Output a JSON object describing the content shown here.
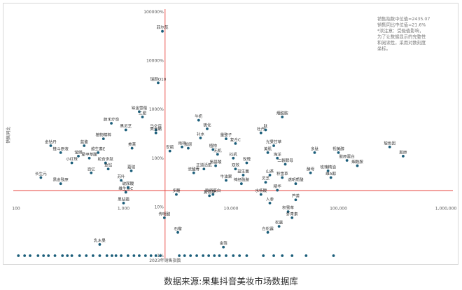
{
  "chart_data": {
    "type": "scatter",
    "xlabel": "2023年销售指数",
    "ylabel": "销售同比",
    "x_scale": "log",
    "y_scale": "log",
    "xlim": [
      100,
      1000000
    ],
    "ylim": [
      "1%",
      "100000%"
    ],
    "x_ticks": [
      "100",
      "1,000",
      "10,000",
      "100,000",
      "1,000,000"
    ],
    "y_ticks": [
      "100000%",
      "10000%",
      "1000%",
      "100%",
      "10%",
      "1%"
    ],
    "median_x": 2435.07,
    "median_y": "21.6%",
    "annotation": [
      "销售指数中位值=2435.07",
      "销售同比中位值=21.6%",
      "*滨注意：受极值影响，",
      "为了让数据显示的完整性",
      "和阅读性，采用对数刻度",
      "坐标。"
    ],
    "color": "#1b5e7a",
    "median_line_color": "#e8403a",
    "points": [
      {
        "label": "菲尔蕊",
        "x": 2300,
        "y": 40000
      },
      {
        "label": "瑞颜Q10",
        "x": 2100,
        "y": 3500
      },
      {
        "label": "铂金雪蕴",
        "x": 1400,
        "y": 900
      },
      {
        "label": "三肥",
        "x": 1500,
        "y": 700
      },
      {
        "label": "颜禾疗愈",
        "x": 770,
        "y": 520
      },
      {
        "label": "黑灵芝",
        "x": 1050,
        "y": 380
      },
      {
        "label": "马仑百",
        "x": 2000,
        "y": 380
      },
      {
        "label": "美元霸",
        "x": 2000,
        "y": 330
      },
      {
        "label": "植物精粹",
        "x": 650,
        "y": 250
      },
      {
        "label": "金钴丹",
        "x": 210,
        "y": 180
      },
      {
        "label": "蓝鉴",
        "x": 430,
        "y": 180
      },
      {
        "label": "美莱",
        "x": 1200,
        "y": 160
      },
      {
        "label": "维生素E",
        "x": 580,
        "y": 130
      },
      {
        "label": "莹朗",
        "x": 380,
        "y": 110
      },
      {
        "label": "蜂斗原液",
        "x": 260,
        "y": 130
      },
      {
        "label": "小红珠",
        "x": 330,
        "y": 80
      },
      {
        "label": "星甲草酸",
        "x": 480,
        "y": 100
      },
      {
        "label": "蛇杏多肽",
        "x": 680,
        "y": 80
      },
      {
        "label": "金钻",
        "x": 720,
        "y": 60
      },
      {
        "label": "百亿",
        "x": 500,
        "y": 50
      },
      {
        "label": "长生元",
        "x": 170,
        "y": 40
      },
      {
        "label": "嘉瑞",
        "x": 1180,
        "y": 55
      },
      {
        "label": "黑金致原",
        "x": 260,
        "y": 30
      },
      {
        "label": "苏叶",
        "x": 950,
        "y": 35
      },
      {
        "label": "维生素C",
        "x": 1050,
        "y": 20
      },
      {
        "label": "玻尿酸",
        "x": 1100,
        "y": 25
      },
      {
        "label": "黑钻霜",
        "x": 1000,
        "y": 12
      },
      {
        "label": "传明酸",
        "x": 2400,
        "y": 6
      },
      {
        "label": "乳木果",
        "x": 600,
        "y": 1.7
      },
      {
        "label": "牛奶",
        "x": 5000,
        "y": 600
      },
      {
        "label": "硫化",
        "x": 6000,
        "y": 400
      },
      {
        "label": "补水",
        "x": 5200,
        "y": 260
      },
      {
        "label": "胶原",
        "x": 4000,
        "y": 160
      },
      {
        "label": "雨林",
        "x": 3500,
        "y": 170
      },
      {
        "label": "安瓶",
        "x": 2700,
        "y": 140
      },
      {
        "label": "植物",
        "x": 6800,
        "y": 150
      },
      {
        "label": "无机",
        "x": 7500,
        "y": 120
      },
      {
        "label": "正道活氧",
        "x": 5600,
        "y": 60
      },
      {
        "label": "氨基酸",
        "x": 7200,
        "y": 70
      },
      {
        "label": "流酸寿",
        "x": 4500,
        "y": 50
      },
      {
        "label": "复合C",
        "x": 11000,
        "y": 200
      },
      {
        "label": "量整子",
        "x": 9000,
        "y": 250
      },
      {
        "label": "杜丹",
        "x": 19000,
        "y": 330
      },
      {
        "label": "抖机",
        "x": 10500,
        "y": 100
      },
      {
        "label": "双效",
        "x": 11000,
        "y": 60
      },
      {
        "label": "玫瑰",
        "x": 14000,
        "y": 80
      },
      {
        "label": "益生菌",
        "x": 13000,
        "y": 45
      },
      {
        "label": "神经酰胺",
        "x": 12500,
        "y": 30
      },
      {
        "label": "牛油果",
        "x": 9000,
        "y": 35
      },
      {
        "label": "多醣",
        "x": 3100,
        "y": 18
      },
      {
        "label": "复活草",
        "x": 6300,
        "y": 17
      },
      {
        "label": "胶原蛋白",
        "x": 6800,
        "y": 18
      },
      {
        "label": "石榴",
        "x": 3200,
        "y": 3
      },
      {
        "label": "金箔",
        "x": 8500,
        "y": 1.5
      },
      {
        "label": "光果甘草",
        "x": 25000,
        "y": 180
      },
      {
        "label": "美肌",
        "x": 22000,
        "y": 130
      },
      {
        "label": "海洋",
        "x": 27000,
        "y": 100
      },
      {
        "label": "二裂酵母",
        "x": 32000,
        "y": 75
      },
      {
        "label": "烟酰胺",
        "x": 30000,
        "y": 700
      },
      {
        "label": "肽",
        "x": 21000,
        "y": 380
      },
      {
        "label": "山茶",
        "x": 23000,
        "y": 45
      },
      {
        "label": "积雪草",
        "x": 30000,
        "y": 40
      },
      {
        "label": "透明质酸",
        "x": 40000,
        "y": 30
      },
      {
        "label": "灵芝",
        "x": 21000,
        "y": 32
      },
      {
        "label": "精华",
        "x": 27000,
        "y": 22
      },
      {
        "label": "水杨酸",
        "x": 19000,
        "y": 18
      },
      {
        "label": "人参",
        "x": 23000,
        "y": 12
      },
      {
        "label": "积雪草",
        "x": 34000,
        "y": 8
      },
      {
        "label": "虾青素",
        "x": 37000,
        "y": 6
      },
      {
        "label": "芦荟",
        "x": 40000,
        "y": 14
      },
      {
        "label": "白松露",
        "x": 22000,
        "y": 3
      },
      {
        "label": "松露",
        "x": 28000,
        "y": 4
      },
      {
        "label": "多肽",
        "x": 60000,
        "y": 130
      },
      {
        "label": "玫瑰精油",
        "x": 80000,
        "y": 55
      },
      {
        "label": "视黄醇",
        "x": 100000,
        "y": 130
      },
      {
        "label": "胶原蛋白",
        "x": 120000,
        "y": 90
      },
      {
        "label": "烟酰胺",
        "x": 150000,
        "y": 70
      },
      {
        "label": "玻色因",
        "x": 300000,
        "y": 170
      },
      {
        "label": "胶原",
        "x": 400000,
        "y": 110
      },
      {
        "label": "酵母",
        "x": 55000,
        "y": 50
      },
      {
        "label": "维A醇",
        "x": 85000,
        "y": 40
      }
    ]
  },
  "source": "数据来源:果集抖音美妆市场数据库"
}
